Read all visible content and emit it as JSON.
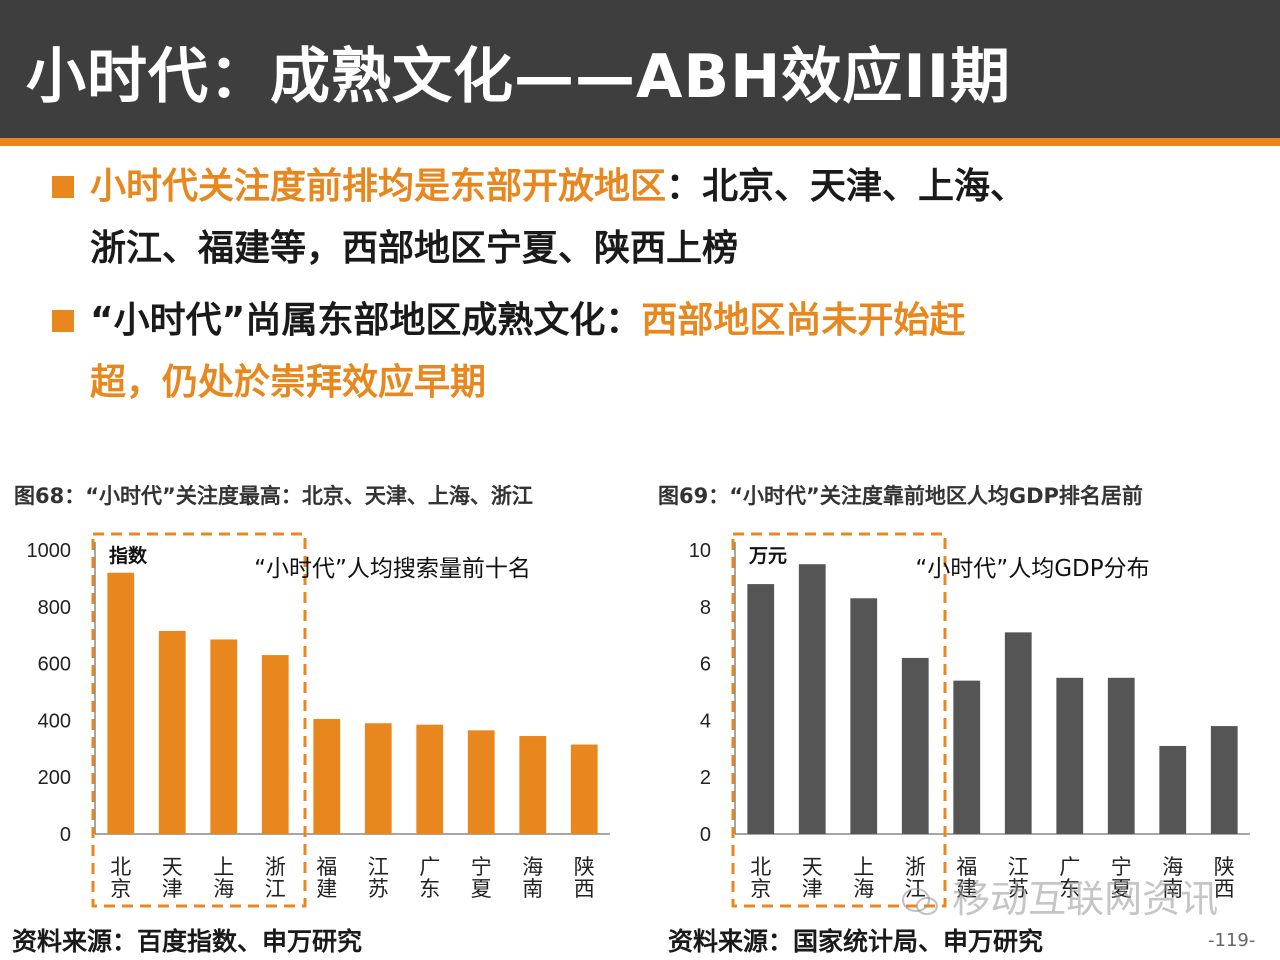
{
  "header": {
    "title": "小时代：成熟文化——ABH效应II期"
  },
  "bullets": [
    {
      "line1_orange": "小时代关注度前排均是东部开放地区",
      "line1_dark": "：北京、天津、上海、",
      "line2_dark": "浙江、福建等，西部地区宁夏、陕西上榜"
    },
    {
      "line1_dark": "“小时代”尚属东部地区成熟文化：",
      "line1_orange": "西部地区尚未开始赶",
      "line2_orange": "超，仍处於崇拜效应早期"
    }
  ],
  "figures": {
    "left_caption": "图68：“小时代”关注度最高：北京、天津、上海、浙江",
    "right_caption": "图69：“小时代”关注度靠前地区人均GDP排名居前",
    "left_source": "资料来源：百度指数、申万研究",
    "right_source": "资料来源：国家统计局、申万研究"
  },
  "page_number": "-119-",
  "watermark": "移动互联网资讯",
  "colors": {
    "accent": "#e8871e",
    "header_bg": "#3e3e3e",
    "gray_bar": "#555555"
  },
  "chart_data": [
    {
      "type": "bar",
      "title": "“小时代”人均搜索量前十名",
      "unit_label": "指数",
      "categories": [
        "北京",
        "天津",
        "上海",
        "浙江",
        "福建",
        "江苏",
        "广东",
        "宁夏",
        "海南",
        "陕西"
      ],
      "values": [
        920,
        715,
        685,
        630,
        405,
        390,
        385,
        365,
        345,
        315
      ],
      "ylim": [
        0,
        1000
      ],
      "yticks": [
        0,
        200,
        400,
        600,
        800,
        1000
      ],
      "highlight_first": 4,
      "grid": false,
      "color": "#e8871e"
    },
    {
      "type": "bar",
      "title": "“小时代”人均GDP分布",
      "unit_label": "万元",
      "categories": [
        "北京",
        "天津",
        "上海",
        "浙江",
        "福建",
        "江苏",
        "广东",
        "宁夏",
        "海南",
        "陕西"
      ],
      "values": [
        8.8,
        9.5,
        8.3,
        6.2,
        5.4,
        7.1,
        5.5,
        5.5,
        3.1,
        3.8
      ],
      "ylim": [
        0,
        10
      ],
      "yticks": [
        0,
        2,
        4,
        6,
        8,
        10
      ],
      "highlight_first": 4,
      "grid": false,
      "color": "#555555"
    }
  ]
}
